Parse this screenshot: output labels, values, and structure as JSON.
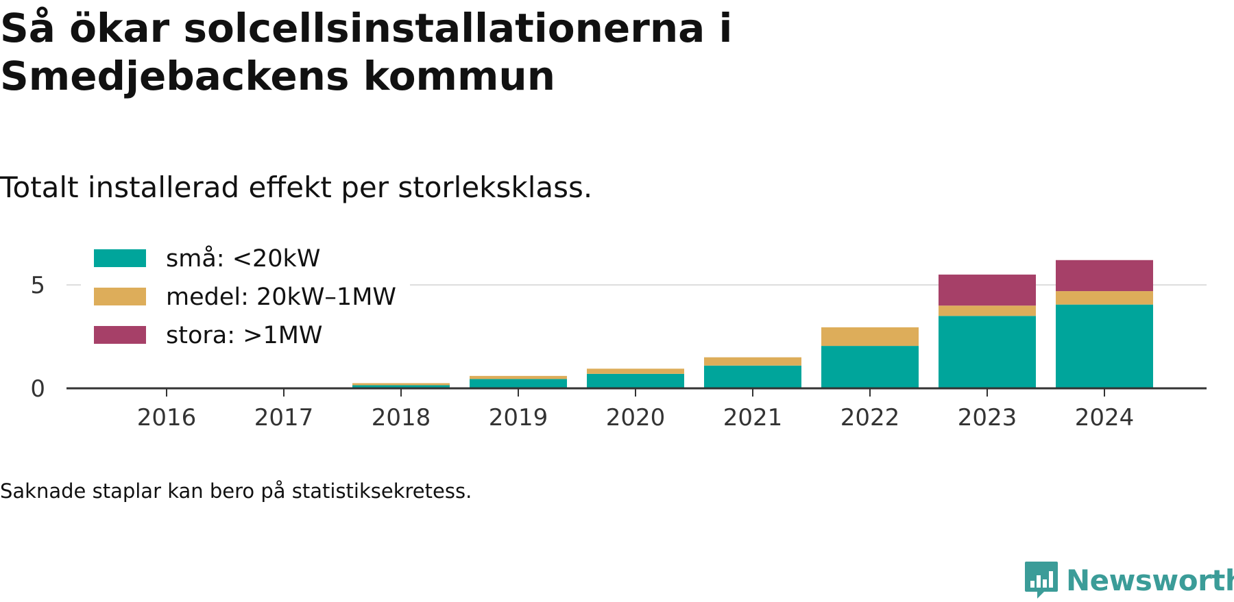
{
  "header": {
    "title": "Så ökar solcellsinstallationerna i Smedjebackens kommun",
    "subtitle": "Totalt installerad effekt per storleksklass."
  },
  "footer": {
    "note": "Saknade staplar kan bero på statistiksekretess.",
    "brand": "Newsworthy",
    "brand_icon": "newsworthy-logo-icon"
  },
  "colors": {
    "sma": "#00a59b",
    "medel": "#ddad5a",
    "stora": "#a64068",
    "axis": "#333333",
    "grid": "#dddddd",
    "brand": "#3b9c98"
  },
  "chart_data": {
    "type": "bar",
    "stacked": true,
    "categories": [
      "2016",
      "2017",
      "2018",
      "2019",
      "2020",
      "2021",
      "2022",
      "2023",
      "2024"
    ],
    "series": [
      {
        "name": "små: <20kW",
        "color": "#00a59b",
        "values": [
          0,
          0,
          0.15,
          0.45,
          0.7,
          1.1,
          2.05,
          3.5,
          4.05
        ]
      },
      {
        "name": "medel: 20kW–1MW",
        "color": "#ddad5a",
        "values": [
          0,
          0,
          0.1,
          0.15,
          0.25,
          0.4,
          0.9,
          0.5,
          0.65
        ]
      },
      {
        "name": "stora: >1MW",
        "color": "#a64068",
        "values": [
          0,
          0,
          0,
          0,
          0,
          0,
          0,
          1.5,
          1.5
        ]
      }
    ],
    "yticks": [
      0,
      5
    ],
    "ylim": [
      0,
      6.5
    ],
    "grid": true,
    "legend": "top-left"
  }
}
